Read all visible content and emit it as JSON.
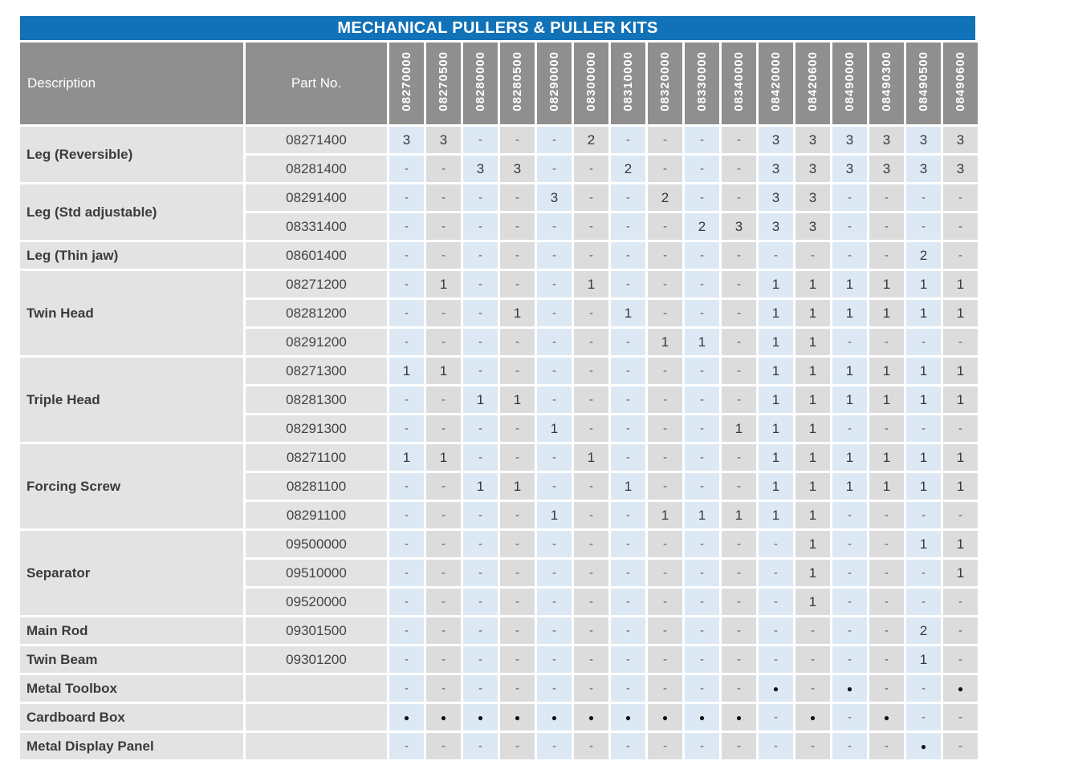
{
  "title": "MECHANICAL PULLERS & PULLER KITS",
  "colors": {
    "title_bar_bg": "#1272b8",
    "header_bg": "#8f8f8f",
    "cell_alt_blue": "#dce9f5",
    "cell_alt_gray": "#dcdcdc",
    "label_cell_bg": "#e3e3e3"
  },
  "table": {
    "col_headers": {
      "description": "Description",
      "part_no": "Part No."
    },
    "kit_columns": [
      "08270000",
      "08270500",
      "08280000",
      "08280500",
      "08290000",
      "08300000",
      "08310000",
      "08320000",
      "08330000",
      "08340000",
      "08420000",
      "08420600",
      "08490000",
      "08490300",
      "08490500",
      "08490600"
    ],
    "groups": [
      {
        "description": "Leg (Reversible)",
        "rows": [
          {
            "part_no": "08271400",
            "values": [
              "3",
              "3",
              "-",
              "-",
              "-",
              "2",
              "-",
              "-",
              "-",
              "-",
              "3",
              "3",
              "3",
              "3",
              "3",
              "3"
            ]
          },
          {
            "part_no": "08281400",
            "values": [
              "-",
              "-",
              "3",
              "3",
              "-",
              "-",
              "2",
              "-",
              "-",
              "-",
              "3",
              "3",
              "3",
              "3",
              "3",
              "3"
            ]
          }
        ]
      },
      {
        "description": "Leg (Std adjustable)",
        "rows": [
          {
            "part_no": "08291400",
            "values": [
              "-",
              "-",
              "-",
              "-",
              "3",
              "-",
              "-",
              "2",
              "-",
              "-",
              "3",
              "3",
              "-",
              "-",
              "-",
              "-"
            ]
          },
          {
            "part_no": "08331400",
            "values": [
              "-",
              "-",
              "-",
              "-",
              "-",
              "-",
              "-",
              "-",
              "2",
              "3",
              "3",
              "3",
              "-",
              "-",
              "-",
              "-"
            ]
          }
        ]
      },
      {
        "description": "Leg (Thin jaw)",
        "rows": [
          {
            "part_no": "08601400",
            "values": [
              "-",
              "-",
              "-",
              "-",
              "-",
              "-",
              "-",
              "-",
              "-",
              "-",
              "-",
              "-",
              "-",
              "-",
              "2",
              "-"
            ]
          }
        ]
      },
      {
        "description": "Twin Head",
        "rows": [
          {
            "part_no": "08271200",
            "values": [
              "-",
              "1",
              "-",
              "-",
              "-",
              "1",
              "-",
              "-",
              "-",
              "-",
              "1",
              "1",
              "1",
              "1",
              "1",
              "1"
            ]
          },
          {
            "part_no": "08281200",
            "values": [
              "-",
              "-",
              "-",
              "1",
              "-",
              "-",
              "1",
              "-",
              "-",
              "-",
              "1",
              "1",
              "1",
              "1",
              "1",
              "1"
            ]
          },
          {
            "part_no": "08291200",
            "values": [
              "-",
              "-",
              "-",
              "-",
              "-",
              "-",
              "-",
              "1",
              "1",
              "-",
              "1",
              "1",
              "-",
              "-",
              "-",
              "-"
            ]
          }
        ]
      },
      {
        "description": "Triple Head",
        "rows": [
          {
            "part_no": "08271300",
            "values": [
              "1",
              "1",
              "-",
              "-",
              "-",
              "-",
              "-",
              "-",
              "-",
              "-",
              "1",
              "1",
              "1",
              "1",
              "1",
              "1"
            ]
          },
          {
            "part_no": "08281300",
            "values": [
              "-",
              "-",
              "1",
              "1",
              "-",
              "-",
              "-",
              "-",
              "-",
              "-",
              "1",
              "1",
              "1",
              "1",
              "1",
              "1"
            ]
          },
          {
            "part_no": "08291300",
            "values": [
              "-",
              "-",
              "-",
              "-",
              "1",
              "-",
              "-",
              "-",
              "-",
              "1",
              "1",
              "1",
              "-",
              "-",
              "-",
              "-"
            ]
          }
        ]
      },
      {
        "description": "Forcing Screw",
        "rows": [
          {
            "part_no": "08271100",
            "values": [
              "1",
              "1",
              "-",
              "-",
              "-",
              "1",
              "-",
              "-",
              "-",
              "-",
              "1",
              "1",
              "1",
              "1",
              "1",
              "1"
            ]
          },
          {
            "part_no": "08281100",
            "values": [
              "-",
              "-",
              "1",
              "1",
              "-",
              "-",
              "1",
              "-",
              "-",
              "-",
              "1",
              "1",
              "1",
              "1",
              "1",
              "1"
            ]
          },
          {
            "part_no": "08291100",
            "values": [
              "-",
              "-",
              "-",
              "-",
              "1",
              "-",
              "-",
              "1",
              "1",
              "1",
              "1",
              "1",
              "-",
              "-",
              "-",
              "-"
            ]
          }
        ]
      },
      {
        "description": "Separator",
        "rows": [
          {
            "part_no": "09500000",
            "values": [
              "-",
              "-",
              "-",
              "-",
              "-",
              "-",
              "-",
              "-",
              "-",
              "-",
              "-",
              "1",
              "-",
              "-",
              "1",
              "1"
            ]
          },
          {
            "part_no": "09510000",
            "values": [
              "-",
              "-",
              "-",
              "-",
              "-",
              "-",
              "-",
              "-",
              "-",
              "-",
              "-",
              "1",
              "-",
              "-",
              "-",
              "1"
            ]
          },
          {
            "part_no": "09520000",
            "values": [
              "-",
              "-",
              "-",
              "-",
              "-",
              "-",
              "-",
              "-",
              "-",
              "-",
              "-",
              "1",
              "-",
              "-",
              "-",
              "-"
            ]
          }
        ]
      },
      {
        "description": "Main Rod",
        "rows": [
          {
            "part_no": "09301500",
            "values": [
              "-",
              "-",
              "-",
              "-",
              "-",
              "-",
              "-",
              "-",
              "-",
              "-",
              "-",
              "-",
              "-",
              "-",
              "2",
              "-"
            ]
          }
        ]
      },
      {
        "description": "Twin Beam",
        "rows": [
          {
            "part_no": "09301200",
            "values": [
              "-",
              "-",
              "-",
              "-",
              "-",
              "-",
              "-",
              "-",
              "-",
              "-",
              "-",
              "-",
              "-",
              "-",
              "1",
              "-"
            ]
          }
        ]
      },
      {
        "description": "Metal Toolbox",
        "rows": [
          {
            "part_no": "",
            "values": [
              "-",
              "-",
              "-",
              "-",
              "-",
              "-",
              "-",
              "-",
              "-",
              "-",
              "•",
              "-",
              "•",
              "-",
              "-",
              "•"
            ]
          }
        ]
      },
      {
        "description": "Cardboard Box",
        "rows": [
          {
            "part_no": "",
            "values": [
              "•",
              "•",
              "•",
              "•",
              "•",
              "•",
              "•",
              "•",
              "•",
              "•",
              "-",
              "•",
              "-",
              "•",
              "-",
              "-"
            ]
          }
        ]
      },
      {
        "description": "Metal Display Panel",
        "rows": [
          {
            "part_no": "",
            "values": [
              "-",
              "-",
              "-",
              "-",
              "-",
              "-",
              "-",
              "-",
              "-",
              "-",
              "-",
              "-",
              "-",
              "-",
              "•",
              "-"
            ]
          }
        ]
      }
    ]
  }
}
